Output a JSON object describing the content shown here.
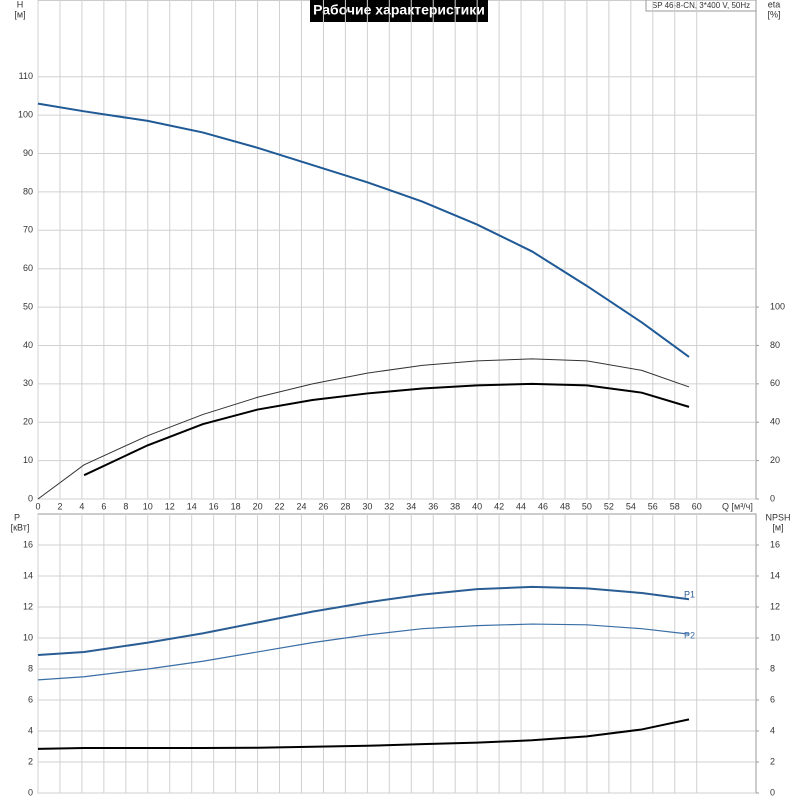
{
  "chart_data": [
    {
      "type": "line",
      "title": "Рабочие характеристики",
      "subtitle": "SP 46-8-CN, 3*400 V, 50Hz",
      "xlabel": "Q [м³/ч]",
      "ylabel": "H",
      "yunit": "[м]",
      "y2label": "eta",
      "y2unit": "[%]",
      "xlim": [
        0,
        65.4
      ],
      "xticks": [
        0,
        2,
        4,
        6,
        8,
        10,
        12,
        14,
        16,
        18,
        20,
        22,
        24,
        26,
        28,
        30,
        32,
        34,
        36,
        38,
        40,
        42,
        44,
        46,
        48,
        50,
        52,
        54,
        56,
        58,
        60
      ],
      "ylim": [
        0,
        130
      ],
      "yticks": [
        0,
        10,
        20,
        30,
        40,
        50,
        60,
        70,
        80,
        90,
        100,
        110
      ],
      "y2lim": [
        0,
        260
      ],
      "y2ticks": [
        0,
        20,
        40,
        60,
        80,
        100
      ],
      "grid": true,
      "series": [
        {
          "color": "#1f5a96",
          "line_width": 2,
          "x": [
            0,
            4.2,
            10,
            15,
            20,
            25,
            30,
            35,
            40,
            45,
            50,
            55,
            59.3
          ],
          "values": [
            103,
            101,
            98.5,
            95.5,
            91.5,
            87,
            82.5,
            77.5,
            71.5,
            64.5,
            55.5,
            46,
            37
          ]
        },
        {
          "color": "#333333",
          "line_width": 1,
          "axis": "y2",
          "x": [
            0,
            4.2,
            10,
            15,
            20,
            25,
            30,
            35,
            40,
            45,
            50,
            55,
            59.3
          ],
          "values": [
            0,
            17.8,
            33,
            44,
            53,
            60,
            65.6,
            69.6,
            72,
            73,
            72,
            67,
            58.4
          ]
        },
        {
          "color": "#000000",
          "line_width": 2,
          "axis": "y2",
          "x": [
            4.2,
            10,
            15,
            20,
            25,
            30,
            35,
            40,
            45,
            50,
            55,
            59.3
          ],
          "values": [
            12.4,
            28,
            39,
            46.6,
            51.6,
            55,
            57.6,
            59.2,
            60,
            59.2,
            55.4,
            48
          ]
        }
      ]
    },
    {
      "type": "line",
      "ylabel": "P",
      "yunit": "[кВт]",
      "y2label": "NPSH",
      "y2unit": "[м]",
      "xlim": [
        0,
        65.4
      ],
      "ylim": [
        0,
        18
      ],
      "yticks": [
        0,
        2,
        4,
        6,
        8,
        10,
        12,
        14,
        16
      ],
      "y2lim": [
        0,
        18
      ],
      "y2ticks": [
        0,
        2,
        4,
        6,
        8,
        10,
        12,
        14,
        16
      ],
      "grid": true,
      "series": [
        {
          "name": "P1",
          "color": "#2a5d94",
          "line_width": 2,
          "x": [
            0,
            4.2,
            10,
            15,
            20,
            25,
            30,
            35,
            40,
            45,
            50,
            55,
            59.3
          ],
          "values": [
            8.9,
            9.1,
            9.7,
            10.3,
            11,
            11.7,
            12.3,
            12.8,
            13.15,
            13.3,
            13.2,
            12.9,
            12.5
          ]
        },
        {
          "name": "P2",
          "color": "#3a6ea5",
          "line_width": 1.2,
          "x": [
            0,
            4.2,
            10,
            15,
            20,
            25,
            30,
            35,
            40,
            45,
            50,
            55,
            59.3
          ],
          "values": [
            7.3,
            7.5,
            8,
            8.5,
            9.1,
            9.7,
            10.2,
            10.6,
            10.8,
            10.9,
            10.85,
            10.6,
            10.25
          ]
        },
        {
          "color": "#000000",
          "line_width": 2,
          "axis": "y2",
          "x": [
            0,
            4.2,
            10,
            15,
            20,
            25,
            30,
            35,
            40,
            45,
            50,
            55,
            59.3
          ],
          "values": [
            2.85,
            2.9,
            2.9,
            2.9,
            2.92,
            2.98,
            3.05,
            3.15,
            3.25,
            3.4,
            3.65,
            4.1,
            4.75
          ]
        }
      ]
    }
  ]
}
